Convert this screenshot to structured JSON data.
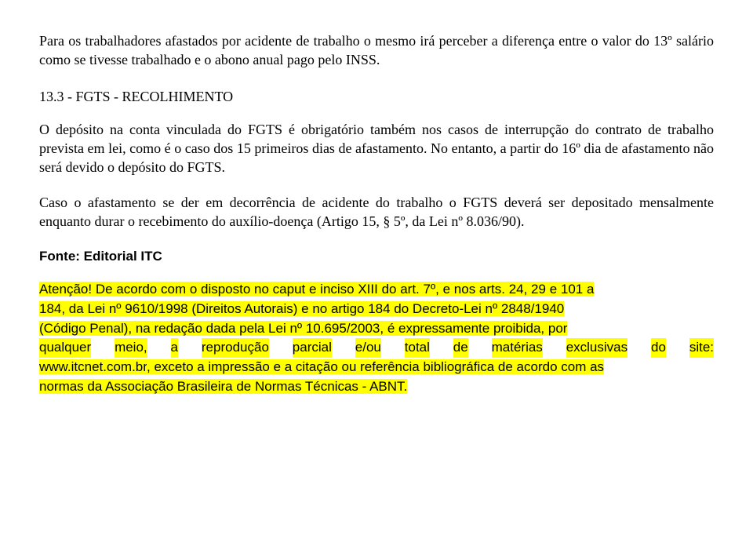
{
  "p1": "Para os trabalhadores afastados por acidente de trabalho o mesmo irá perceber a diferença entre o valor do 13º salário como se tivesse trabalhado e o abono anual pago pelo INSS.",
  "section_heading": "13.3 - FGTS - RECOLHIMENTO",
  "p2": "O depósito na conta vinculada do FGTS é obrigatório também nos casos de interrupção do contrato de trabalho prevista em lei, como é o caso dos 15 primeiros dias de afastamento. No entanto, a partir do 16º dia de afastamento não será devido o depósito do FGTS.",
  "p3": "Caso o afastamento se der em decorrência de acidente do trabalho o FGTS deverá ser depositado mensalmente enquanto durar o recebimento do auxílio-doença (Artigo 15, § 5º, da Lei nº 8.036/90).",
  "source_label": "Fonte: Editorial ITC",
  "notice_l1": "Atenção! De acordo com o disposto no caput e inciso XIII do art. 7º, e nos arts. 24, 29 e 101 a",
  "notice_l2": "184, da Lei nº 9610/1998 (Direitos Autorais) e no artigo 184 do Decreto-Lei nº 2848/1940",
  "notice_l3": "(Código Penal), na redação dada pela Lei nº 10.695/2003, é expressamente proibida, por",
  "notice_l4a": "qualquer",
  "notice_l4b": "meio,",
  "notice_l4c": "a",
  "notice_l4d": "reprodução",
  "notice_l4e": "parcial",
  "notice_l4f": "e/ou",
  "notice_l4g": "total",
  "notice_l4h": "de",
  "notice_l4i": "matérias",
  "notice_l4j": "exclusivas",
  "notice_l4k": "do",
  "notice_l4l": "site:",
  "notice_l5a": "www.itcnet.com.br",
  "notice_l5b": ", exceto a impressão e a citação ou referência bibliográfica de acordo com as",
  "notice_l6": "normas da Associação Brasileira de Normas Técnicas - ABNT.",
  "colors": {
    "highlight": "#ffff00",
    "text": "#000000",
    "background": "#ffffff"
  },
  "fonts": {
    "body_family": "Times New Roman",
    "body_size_pt": 14,
    "bold_family": "Arial",
    "bold_size_pt": 13
  }
}
